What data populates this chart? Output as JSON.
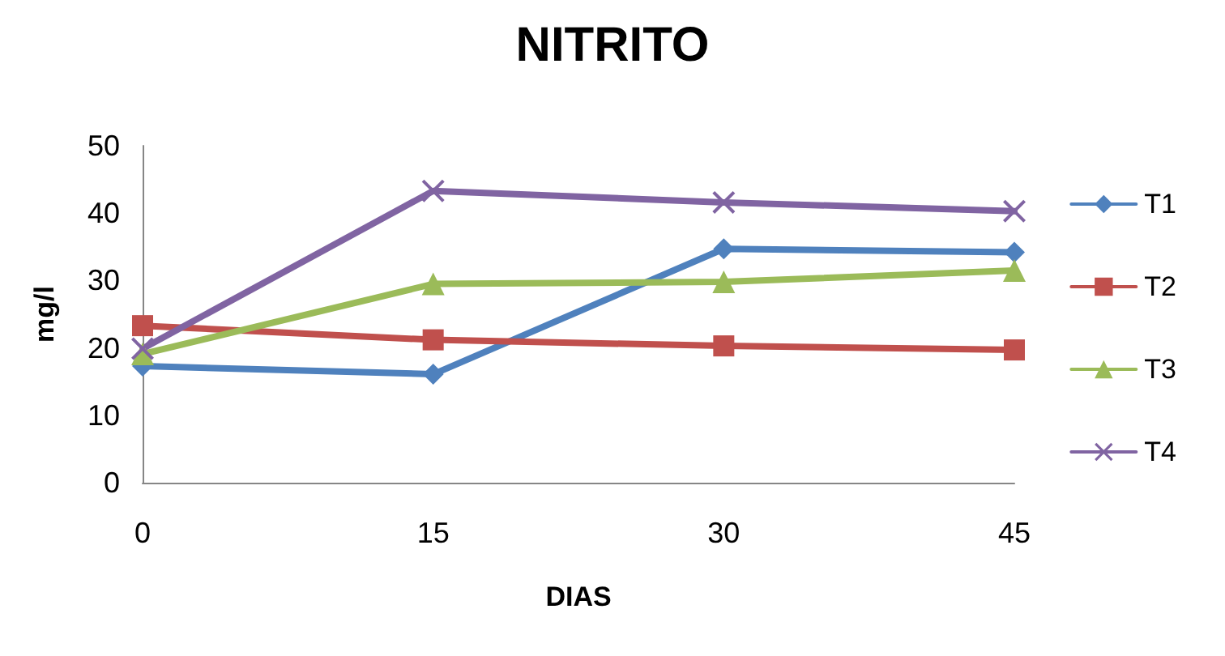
{
  "chart_data": {
    "type": "line",
    "title": "NITRITO",
    "xlabel": "DIAS",
    "ylabel": "mg/l",
    "categories": [
      "0",
      "15",
      "30",
      "45"
    ],
    "series": [
      {
        "name": "T1",
        "color": "#4f81bd",
        "marker": "diamond",
        "values": [
          17.3,
          16.1,
          34.7,
          34.2
        ]
      },
      {
        "name": "T2",
        "color": "#c0504d",
        "marker": "square",
        "values": [
          23.3,
          21.2,
          20.3,
          19.7
        ]
      },
      {
        "name": "T3",
        "color": "#9bbb59",
        "marker": "triangle",
        "values": [
          19.1,
          29.5,
          29.8,
          31.5
        ]
      },
      {
        "name": "T4",
        "color": "#8064a2",
        "marker": "cross",
        "values": [
          19.9,
          43.3,
          41.6,
          40.3
        ]
      }
    ],
    "ylim": [
      0,
      50
    ],
    "yticks": [
      0,
      10,
      20,
      30,
      40,
      50
    ],
    "grid": false,
    "legend": "right",
    "line_style": "solid"
  }
}
